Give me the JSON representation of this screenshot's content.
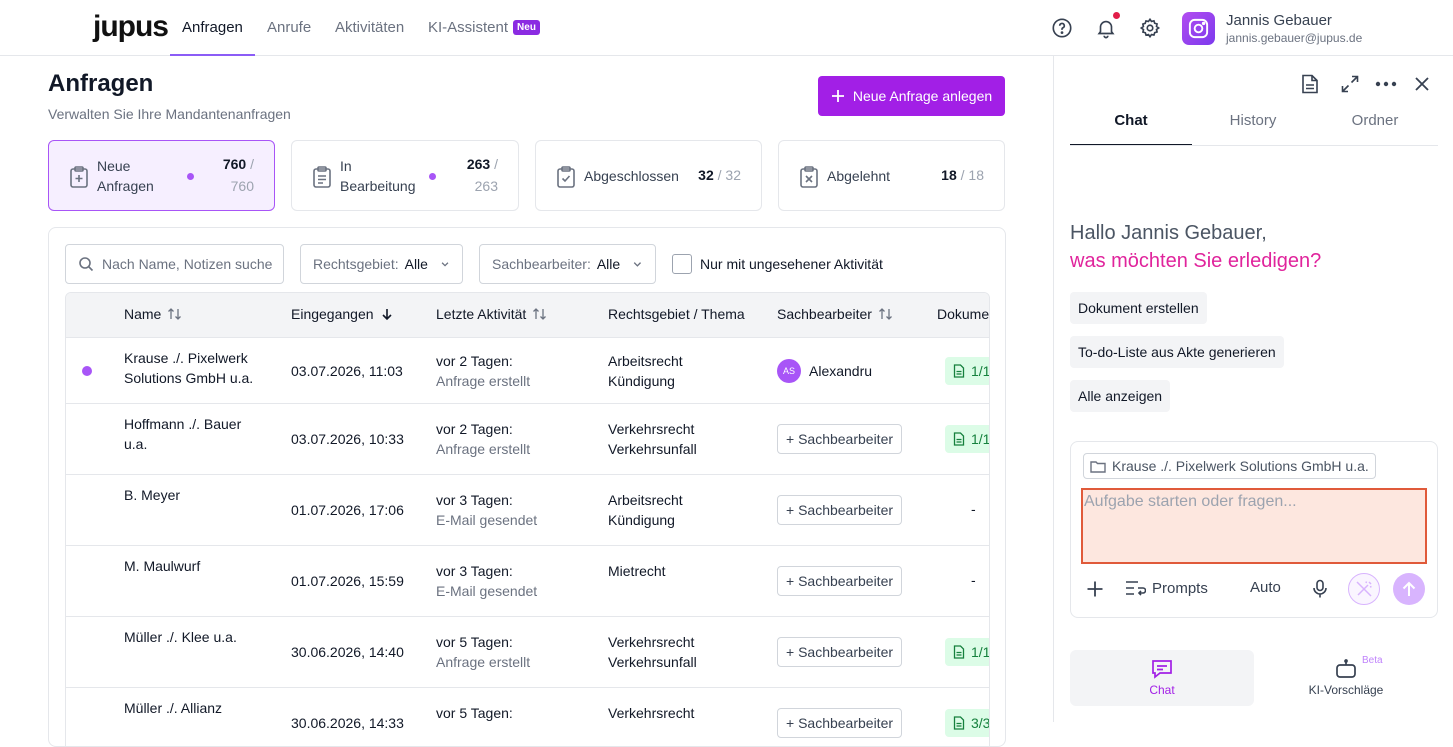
{
  "app": {
    "logo": "jupus",
    "nav": [
      {
        "label": "Anfragen",
        "active": true
      },
      {
        "label": "Anrufe"
      },
      {
        "label": "Aktivitäten"
      },
      {
        "label": "KI-Assistent",
        "badge": "Neu"
      }
    ],
    "user": {
      "name": "Jannis Gebauer",
      "email": "jannis.gebauer@jupus.de"
    },
    "icons": [
      "help-icon",
      "bell-icon",
      "gear-icon"
    ]
  },
  "page": {
    "title": "Anfragen",
    "subtitle": "Verwalten Sie Ihre Mandantenanfragen",
    "new_button": "Neue Anfrage anlegen"
  },
  "stats": [
    {
      "label_line1": "Neue",
      "label_line2": "Anfragen",
      "count": "760",
      "total": "760",
      "active": true
    },
    {
      "label_line1": "In",
      "label_line2": "Bearbeitung",
      "count": "263",
      "total": "263"
    },
    {
      "label": "Abgeschlossen",
      "count": "32",
      "total": "32"
    },
    {
      "label": "Abgelehnt",
      "count": "18",
      "total": "18"
    }
  ],
  "filters": {
    "search_placeholder": "Nach Name, Notizen suchen",
    "rechtsgebiet_label": "Rechtsgebiet:",
    "rechtsgebiet_value": "Alle",
    "sachbearbeiter_label": "Sachbearbeiter:",
    "sachbearbeiter_value": "Alle",
    "unseen_label": "Nur mit ungesehener Aktivität"
  },
  "table": {
    "columns": [
      "Name",
      "Eingegangen",
      "Letzte Aktivität",
      "Rechtsgebiet / Thema",
      "Sachbearbeiter",
      "Dokume"
    ],
    "add_assignee_label": "+ Sachbearbeiter",
    "rows": [
      {
        "name1": "Krause ./. Pixelwerk",
        "name2": "Solutions GmbH u.a.",
        "date": "03.07.2026, 11:03",
        "act1": "vor 2 Tagen:",
        "act2": "Anfrage erstellt",
        "area1": "Arbeitsrecht",
        "area2": "Kündigung",
        "assignee": "Alexandru",
        "assignee_initials": "AS",
        "docs": "1/1",
        "unseen": true
      },
      {
        "name1": "Hoffmann ./. Bauer",
        "name2": "u.a.",
        "date": "03.07.2026, 10:33",
        "act1": "vor 2 Tagen:",
        "act2": "Anfrage erstellt",
        "area1": "Verkehrsrecht",
        "area2": "Verkehrsunfall",
        "docs": "1/1"
      },
      {
        "name1": "B. Meyer",
        "name2": "",
        "date": "01.07.2026, 17:06",
        "act1": "vor 3 Tagen:",
        "act2": "E-Mail gesendet",
        "area1": "Arbeitsrecht",
        "area2": "Kündigung",
        "docs": "-"
      },
      {
        "name1": "M. Maulwurf",
        "name2": "",
        "date": "01.07.2026, 15:59",
        "act1": "vor 3 Tagen:",
        "act2": "E-Mail gesendet",
        "area1": "Mietrecht",
        "area2": "",
        "docs": "-"
      },
      {
        "name1": "Müller ./. Klee u.a.",
        "name2": "",
        "date": "30.06.2026, 14:40",
        "act1": "vor 5 Tagen:",
        "act2": "Anfrage erstellt",
        "area1": "Verkehrsrecht",
        "area2": "Verkehrsunfall",
        "docs": "1/1"
      },
      {
        "name1": "Müller ./. Allianz",
        "name2": "",
        "date": "30.06.2026, 14:33",
        "act1": "vor 5 Tagen:",
        "act2": "",
        "area1": "Verkehrsrecht",
        "area2": "",
        "docs": "3/3"
      }
    ]
  },
  "side": {
    "tabs": [
      "Chat",
      "History",
      "Ordner"
    ],
    "greeting_line1": "Hallo Jannis Gebauer,",
    "greeting_line2": "was möchten Sie erledigen?",
    "chips": [
      "Dokument erstellen",
      "To-do-Liste aus Akte generieren",
      "Alle anzeigen"
    ],
    "context_chip": "Krause ./. Pixelwerk Solutions GmbH u.a.",
    "input_placeholder": "Aufgabe starten oder fragen...",
    "prompts_label": "Prompts",
    "mode_label": "Auto",
    "bottom": [
      {
        "label": "Chat",
        "active": true
      },
      {
        "label": "KI-Vorschläge",
        "badge": "Beta"
      }
    ]
  },
  "colors": {
    "accent": "#a21fe6",
    "greeting_accent": "#e0249c",
    "doc_badge": "#dcfce7"
  }
}
